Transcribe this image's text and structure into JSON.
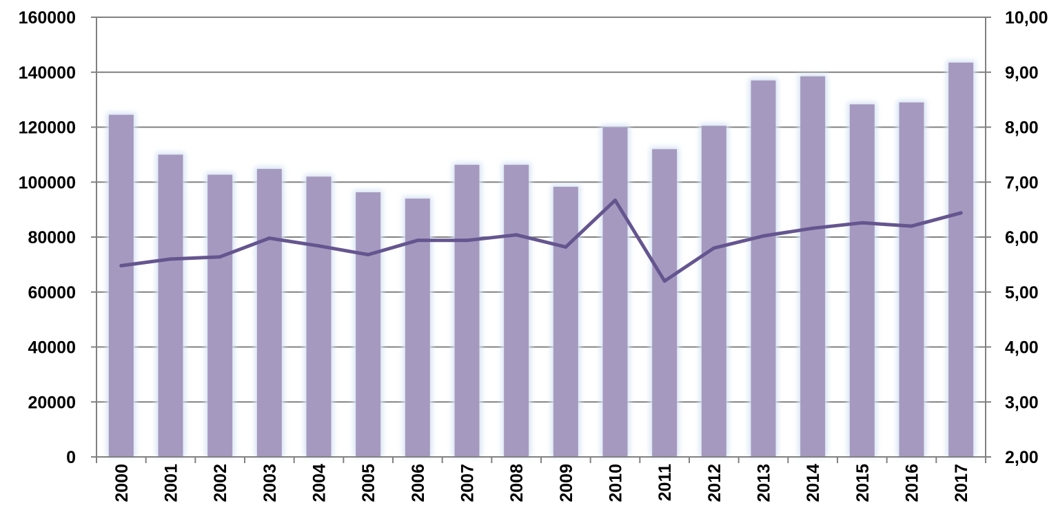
{
  "chart_data": {
    "type": "bar",
    "title": "",
    "xlabel": "",
    "ylabel": "",
    "y2label": "",
    "categories": [
      "2000",
      "2001",
      "2002",
      "2003",
      "2004",
      "2005",
      "2006",
      "2007",
      "2008",
      "2009",
      "2010",
      "2011",
      "2012",
      "2013",
      "2014",
      "2015",
      "2016",
      "2017"
    ],
    "series": [
      {
        "type": "bar",
        "axis": "left",
        "color": "#A699BF",
        "values": [
          124500,
          110000,
          102700,
          104800,
          102000,
          96300,
          94000,
          106300,
          106300,
          98300,
          120000,
          112000,
          120500,
          137000,
          138500,
          128300,
          129000,
          143500
        ]
      },
      {
        "type": "line",
        "axis": "right",
        "color": "#65558F",
        "values": [
          5.48,
          5.6,
          5.64,
          5.98,
          5.84,
          5.68,
          5.94,
          5.94,
          6.04,
          5.82,
          6.67,
          5.2,
          5.8,
          6.02,
          6.16,
          6.26,
          6.2,
          6.44
        ]
      }
    ],
    "ylim": [
      0,
      160000
    ],
    "y2lim": [
      2,
      10
    ],
    "yticks": [
      "0",
      "20000",
      "40000",
      "60000",
      "80000",
      "100000",
      "120000",
      "140000",
      "160000"
    ],
    "y2ticks": [
      "2,00",
      "3,00",
      "4,00",
      "5,00",
      "6,00",
      "7,00",
      "8,00",
      "9,00",
      "10,00"
    ],
    "grid": true,
    "legend": "none",
    "colors": {
      "grid": "#808080",
      "axis": "#808080",
      "bar_glow": "#D5E3F3"
    }
  }
}
